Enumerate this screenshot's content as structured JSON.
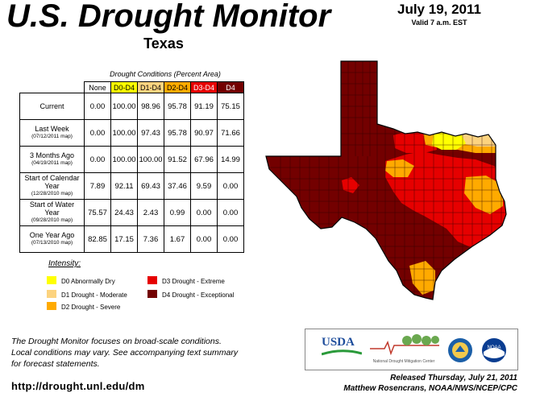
{
  "header": {
    "title": "U.S. Drought Monitor",
    "date": "July 19, 2011",
    "valid": "Valid 7 a.m. EST",
    "region": "Texas"
  },
  "table": {
    "caption": "Drought Conditions (Percent Area)",
    "columns": [
      "None",
      "D0-D4",
      "D1-D4",
      "D2-D4",
      "D3-D4",
      "D4"
    ],
    "column_colors": [
      "#ffffff",
      "#ffff00",
      "#fcd37f",
      "#ffaa00",
      "#e60000",
      "#730000"
    ],
    "rows": [
      {
        "label": "Current",
        "sub": "",
        "values": [
          "0.00",
          "100.00",
          "98.96",
          "95.78",
          "91.19",
          "75.15"
        ]
      },
      {
        "label": "Last Week",
        "sub": "(07/12/2011 map)",
        "values": [
          "0.00",
          "100.00",
          "97.43",
          "95.78",
          "90.97",
          "71.66"
        ]
      },
      {
        "label": "3 Months Ago",
        "sub": "(04/19/2011 map)",
        "values": [
          "0.00",
          "100.00",
          "100.00",
          "91.52",
          "67.96",
          "14.99"
        ]
      },
      {
        "label": "Start of Calendar Year",
        "sub": "(12/28/2010 map)",
        "values": [
          "7.89",
          "92.11",
          "69.43",
          "37.46",
          "9.59",
          "0.00"
        ]
      },
      {
        "label": "Start of Water Year",
        "sub": "(09/28/2010 map)",
        "values": [
          "75.57",
          "24.43",
          "2.43",
          "0.99",
          "0.00",
          "0.00"
        ]
      },
      {
        "label": "One Year Ago",
        "sub": "(07/13/2010 map)",
        "values": [
          "82.85",
          "17.15",
          "7.36",
          "1.67",
          "0.00",
          "0.00"
        ]
      }
    ]
  },
  "legend": {
    "title": "Intensity:",
    "items": [
      {
        "label": "D0 Abnormally Dry",
        "color": "#ffff00"
      },
      {
        "label": "D1 Drought - Moderate",
        "color": "#fcd37f"
      },
      {
        "label": "D2 Drought - Severe",
        "color": "#ffaa00"
      },
      {
        "label": "D3 Drought - Extreme",
        "color": "#e60000"
      },
      {
        "label": "D4 Drought - Exceptional",
        "color": "#730000"
      }
    ]
  },
  "footer": {
    "note_line1": "The Drought Monitor focuses on broad-scale conditions.",
    "note_line2": "Local conditions may vary. See accompanying text summary",
    "note_line3": "for forecast statements.",
    "url": "http://drought.unl.edu/dm",
    "released": "Released Thursday, July 21, 2011",
    "authors": "Matthew Rosencrans, NOAA/NWS/NCEP/CPC"
  },
  "logos": {
    "usda": "USDA",
    "ndmc": "National Drought Mitigation Center",
    "noaa": "NOAA"
  }
}
